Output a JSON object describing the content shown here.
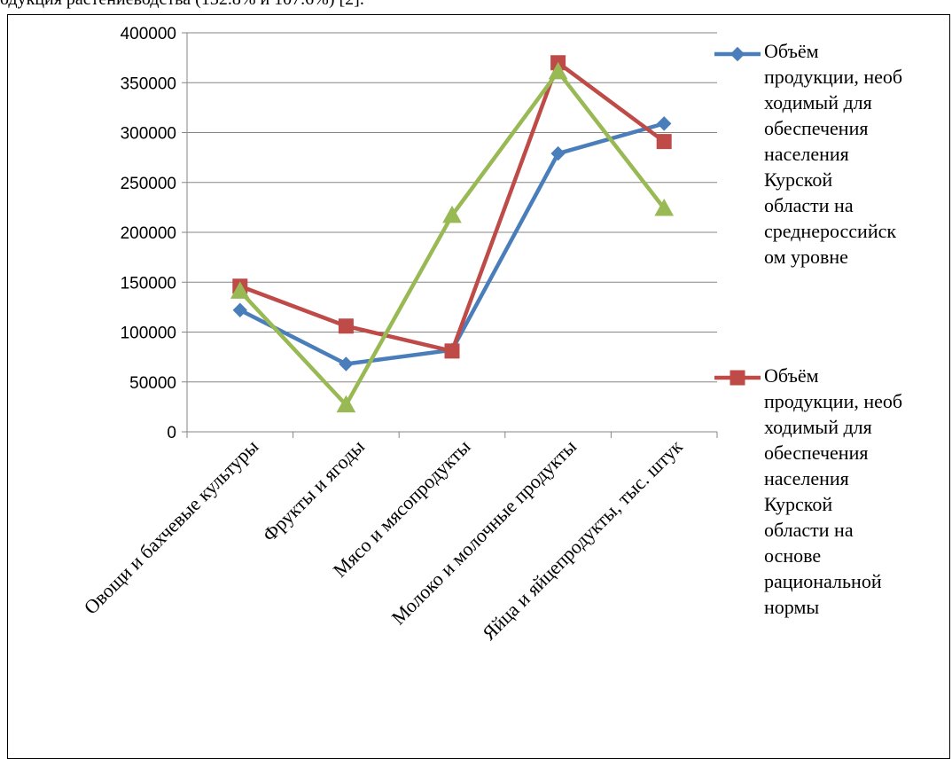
{
  "page": {
    "top_text": "одукция растениеводства (132.8% и 107.6%) [2]."
  },
  "chart_data": {
    "type": "line",
    "categories": [
      "Овощи и  бахчевые культуры",
      "Фрукты и ягоды",
      "Мясо и мясопродукты",
      "Молоко и молочные продукты",
      "Яйца и яйцепродукты, тыс. штук"
    ],
    "ylim": [
      0,
      400000
    ],
    "yticks": [
      0,
      50000,
      100000,
      150000,
      200000,
      250000,
      300000,
      350000,
      400000
    ],
    "grid": true,
    "legend_position": "right",
    "series": [
      {
        "name": "Объём\nпродукции, необ\nходимый для\nобеспечения\nнаселения\nКурской\nобласти на\nсреднероссийск\nом уровне",
        "color": "#4a7ebb",
        "marker": "diamond",
        "values": [
          122000,
          68000,
          82000,
          279000,
          309000
        ]
      },
      {
        "name": "Объём\nпродукции, необ\nходимый для\nобеспечения\nнаселения\nКурской\nобласти на\nоснове\nрациональной\nнормы",
        "color": "#be4b48",
        "marker": "square",
        "values": [
          146000,
          106000,
          81000,
          370000,
          291000
        ]
      },
      {
        "name": "",
        "color": "#98b954",
        "marker": "triangle",
        "values": [
          141000,
          27000,
          217000,
          361000,
          224000
        ]
      }
    ]
  }
}
